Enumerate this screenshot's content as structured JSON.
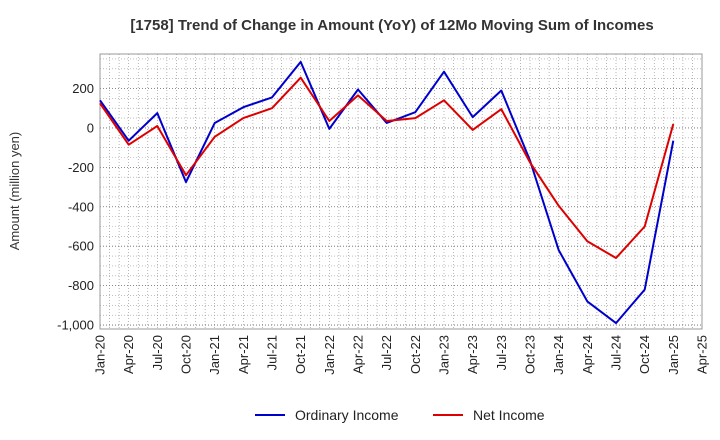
{
  "chart_data": {
    "type": "line",
    "title": "[1758]  Trend of Change in Amount (YoY) of 12Mo Moving Sum of Incomes",
    "ylabel": "Amount (million yen)",
    "xlabel": "",
    "ylim": [
      -1020,
      375
    ],
    "yticks": [
      200,
      0,
      -200,
      -400,
      -600,
      -800,
      -1000
    ],
    "ytick_labels": [
      "200",
      "0",
      "-200",
      "-400",
      "-600",
      "-800",
      "-1,000"
    ],
    "x_tick_labels": [
      "Jan-20",
      "Apr-20",
      "Jul-20",
      "Oct-20",
      "Jan-21",
      "Apr-21",
      "Jul-21",
      "Oct-21",
      "Jan-22",
      "Apr-22",
      "Jul-22",
      "Oct-22",
      "Jan-23",
      "Apr-23",
      "Jul-23",
      "Oct-23",
      "Jan-24",
      "Apr-24",
      "Jul-24",
      "Oct-24",
      "Jan-25",
      "Apr-25"
    ],
    "grid": true,
    "legend_position": "bottom-center",
    "series": [
      {
        "name": "Ordinary Income",
        "color": "#0000cc",
        "values": [
          140,
          -65,
          75,
          -275,
          25,
          105,
          155,
          335,
          -5,
          195,
          25,
          80,
          285,
          55,
          190,
          -165,
          -620,
          -880,
          -990,
          -820,
          -65
        ]
      },
      {
        "name": "Net Income",
        "color": "#dd0000",
        "values": [
          125,
          -85,
          10,
          -240,
          -45,
          50,
          100,
          255,
          35,
          165,
          35,
          50,
          140,
          -10,
          95,
          -175,
          -395,
          -575,
          -660,
          -500,
          20
        ]
      }
    ]
  }
}
